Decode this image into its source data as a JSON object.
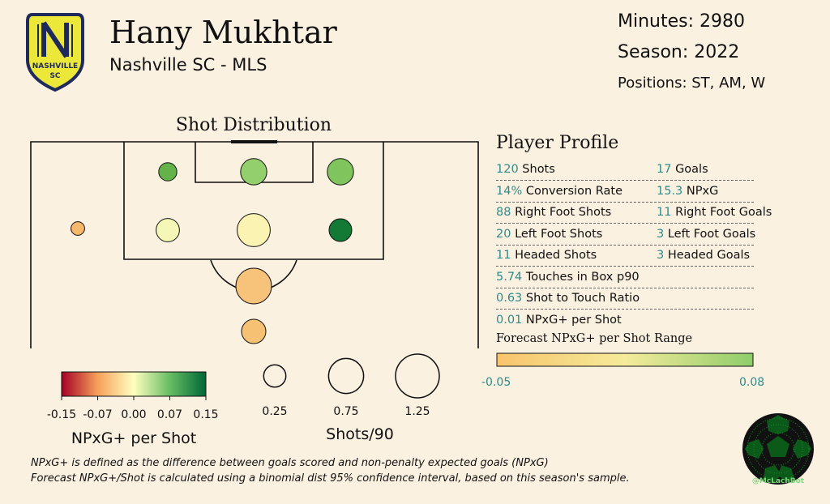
{
  "header": {
    "player_name": "Hany Mukhtar",
    "team_league": "Nashville SC - MLS",
    "minutes": "Minutes: 2980",
    "season": "Season: 2022",
    "positions": "Positions: ST, AM, W"
  },
  "logo": {
    "text_top": "NASHVILLE",
    "text_bottom": "SC",
    "fill": "#ece83a",
    "stroke": "#1f2a5c"
  },
  "chart_data": [
    {
      "type": "scatter",
      "title": "Shot Distribution",
      "points": [
        {
          "zone": "six-yard-left",
          "shots_per90": 0.23,
          "npxg_plus_per_shot": 0.11,
          "color": "#66b24a"
        },
        {
          "zone": "six-yard-center",
          "shots_per90": 0.6,
          "npxg_plus_per_shot": 0.08,
          "color": "#93cf6d"
        },
        {
          "zone": "six-yard-right",
          "shots_per90": 0.6,
          "npxg_plus_per_shot": 0.09,
          "color": "#80c45d"
        },
        {
          "zone": "wide-left",
          "shots_per90": 0.1,
          "npxg_plus_per_shot": -0.04,
          "color": "#f6b86a"
        },
        {
          "zone": "box-left",
          "shots_per90": 0.45,
          "npxg_plus_per_shot": 0.01,
          "color": "#f4f7b6"
        },
        {
          "zone": "box-center",
          "shots_per90": 1.05,
          "npxg_plus_per_shot": 0.0,
          "color": "#fbf3b1"
        },
        {
          "zone": "box-right",
          "shots_per90": 0.42,
          "npxg_plus_per_shot": 0.15,
          "color": "#137a35"
        },
        {
          "zone": "edge-center",
          "shots_per90": 1.25,
          "npxg_plus_per_shot": -0.04,
          "color": "#f7c37a"
        },
        {
          "zone": "long-center",
          "shots_per90": 0.5,
          "npxg_plus_per_shot": -0.04,
          "color": "#f6c173"
        }
      ]
    },
    {
      "type": "heatmap",
      "title": "NPxG+ per Shot",
      "tick_labels": [
        "-0.15",
        "-0.07",
        "0.00",
        "0.07",
        "0.15"
      ],
      "colors": [
        "#a50026",
        "#f6a05a",
        "#ffffbf",
        "#66bd63",
        "#006837"
      ]
    },
    {
      "type": "scatter",
      "title": "Shots/90",
      "sizes": [
        0.25,
        0.75,
        1.25
      ],
      "labels": [
        "0.25",
        "0.75",
        "1.25"
      ]
    },
    {
      "type": "bar",
      "title": "Forecast NPxG+ per Shot Range",
      "range": [
        -0.05,
        0.08
      ],
      "min_label": "-0.05",
      "max_label": "0.08",
      "colors": [
        "#f8c46c",
        "#8fcd6a"
      ]
    }
  ],
  "profile": {
    "title": "Player Profile",
    "rows": [
      {
        "a_num": "120",
        "a_label": "Shots",
        "b_num": "17",
        "b_label": "Goals"
      },
      {
        "a_num": "14%",
        "a_label": "Conversion Rate",
        "b_num": "15.3",
        "b_label": "NPxG"
      },
      {
        "a_num": "88",
        "a_label": "Right Foot Shots",
        "b_num": "11",
        "b_label": "Right Foot Goals"
      },
      {
        "a_num": "20",
        "a_label": "Left Foot Shots",
        "b_num": "3",
        "b_label": "Left Foot Goals"
      },
      {
        "a_num": "11",
        "a_label": "Headed Shots",
        "b_num": "3",
        "b_label": "Headed Goals"
      },
      {
        "a_num": "5.74",
        "a_label": "Touches in Box p90",
        "b_num": "",
        "b_label": ""
      },
      {
        "a_num": "0.63",
        "a_label": "Shot to Touch Ratio",
        "b_num": "",
        "b_label": ""
      },
      {
        "a_num": "0.01",
        "a_label": "NPxG+ per Shot",
        "b_num": "",
        "b_label": ""
      }
    ]
  },
  "footnote": {
    "line1": "NPxG+ is defined as the difference between goals scored and non-penalty expected goals (NPxG)",
    "line2": "Forecast NPxG+/Shot is calculated using a binomial dist 95% confidence interval, based on this season's sample."
  },
  "watermark": {
    "handle": "@McLachBot"
  },
  "colors": {
    "accent": "#2e8b8b",
    "background": "#fbf1e1"
  }
}
